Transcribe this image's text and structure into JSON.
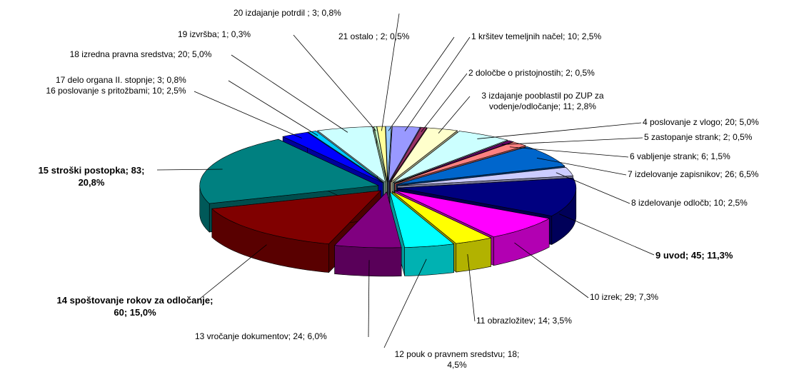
{
  "chart_data": {
    "type": "pie3d",
    "categories": [
      "1  kršitev temeljnih načel",
      "2  določbe o pristojnostih",
      "3  izdajanje pooblastil po ZUP za vodenje/odločanje",
      "4  poslovanje z vlogo",
      "5  zastopanje strank",
      "6  vabljenje strank",
      "7   izdelovanje zapisnikov",
      "8  izdelovanje odločb",
      "9  uvod",
      "10 izrek",
      "11 obrazložitev",
      "12 pouk o pravnem sredstvu",
      "13 vročanje dokumentov",
      "14 spoštovanje rokov za odločanje",
      "15 stroški postopka",
      "16 poslovanje s pritožbami",
      "17 delo organa II. stopnje",
      "18 izredna pravna sredstva",
      "19 izvršba",
      "20 izdajanje potrdil ",
      "21 ostalo "
    ],
    "values": [
      10,
      2,
      11,
      20,
      2,
      6,
      26,
      10,
      45,
      29,
      14,
      18,
      24,
      60,
      83,
      10,
      3,
      20,
      1,
      3,
      2
    ],
    "percentages": [
      2.5,
      0.5,
      2.8,
      5.0,
      0.5,
      1.5,
      6.5,
      2.5,
      11.3,
      7.3,
      3.5,
      4.5,
      6.0,
      15.0,
      20.8,
      2.5,
      0.8,
      5.0,
      0.3,
      0.8,
      0.5
    ],
    "percentage_labels": [
      "2,5%",
      "0,5%",
      "2,8%",
      "5,0%",
      "0,5%",
      "1,5%",
      "6,5%",
      "2,5%",
      "11,3%",
      "7,3%",
      "3,5%",
      "4,5%",
      "6,0%",
      "15,0%",
      "20,8%",
      "2,5%",
      "0,8%",
      "5,0%",
      "0,3%",
      "0,8%",
      "0,5%"
    ],
    "colors": [
      "#9999ff",
      "#993366",
      "#ffffcc",
      "#ccffff",
      "#660066",
      "#ff8080",
      "#0066cc",
      "#ccccff",
      "#000080",
      "#ff00ff",
      "#ffff00",
      "#00ffff",
      "#800080",
      "#800000",
      "#008080",
      "#0000ff",
      "#00ccff",
      "#ccffff",
      "#ccffcc",
      "#ffff99",
      "#99ccff"
    ]
  }
}
